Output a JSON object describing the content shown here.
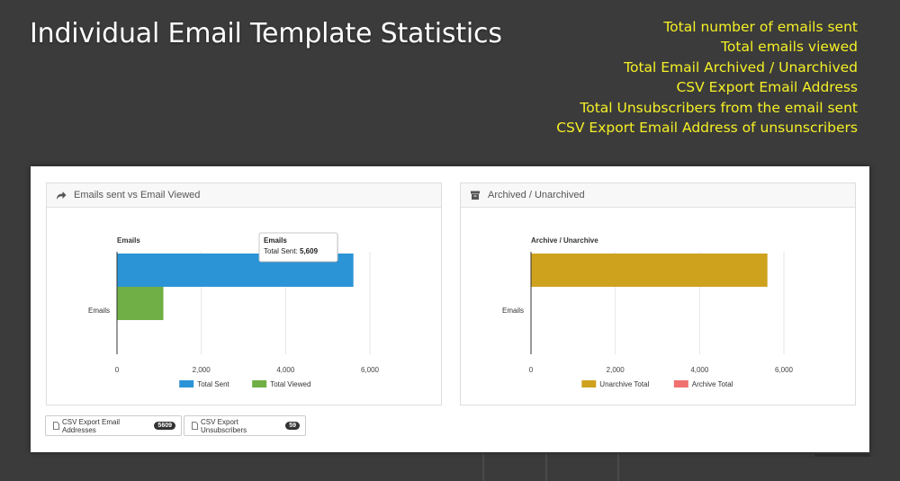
{
  "header": {
    "title": "Individual Email Template Statistics"
  },
  "features": [
    "Total number of emails sent",
    "Total emails viewed",
    "Total Email Archived / Unarchived",
    "CSV Export Email Address",
    "Total Unsubscribers from the email sent",
    "CSV Export Email Address of unsunscribers"
  ],
  "panels": [
    {
      "heading": "Emails sent vs Email Viewed",
      "icon": "share-arrow-icon",
      "tooltip": {
        "title": "Emails",
        "label": "Total Sent:",
        "value": "5,609"
      }
    },
    {
      "heading": "Archived / Unarchived",
      "icon": "archive-box-icon"
    }
  ],
  "buttons": [
    {
      "label": "CSV Export Email Addresses",
      "count": "5609",
      "icon": "file-icon"
    },
    {
      "label": "CSV Export Unsubscribers",
      "count": "59",
      "icon": "file-icon"
    }
  ],
  "chart_data": [
    {
      "type": "bar",
      "orientation": "horizontal",
      "title": "Emails",
      "categories": [
        "Emails"
      ],
      "series": [
        {
          "name": "Total Sent",
          "values": [
            5609
          ],
          "color": "#2b94d6"
        },
        {
          "name": "Total Viewed",
          "values": [
            1100
          ],
          "color": "#6faf45"
        }
      ],
      "xlim": [
        0,
        6000
      ],
      "xticks": [
        0,
        2000,
        4000,
        6000
      ],
      "xtick_labels": [
        "0",
        "2,000",
        "4,000",
        "6,000"
      ],
      "grid": true,
      "legend": "bottom"
    },
    {
      "type": "bar",
      "orientation": "horizontal",
      "title": "Archive / Unarchive",
      "categories": [
        "Emails"
      ],
      "series": [
        {
          "name": "Unarchive Total",
          "values": [
            5609
          ],
          "color": "#cfa21e"
        },
        {
          "name": "Archive Total",
          "values": [
            0
          ],
          "color": "#f07070"
        }
      ],
      "xlim": [
        0,
        6000
      ],
      "xticks": [
        0,
        2000,
        4000,
        6000
      ],
      "xtick_labels": [
        "0",
        "2,000",
        "4,000",
        "6,000"
      ],
      "grid": true,
      "legend": "bottom"
    }
  ]
}
